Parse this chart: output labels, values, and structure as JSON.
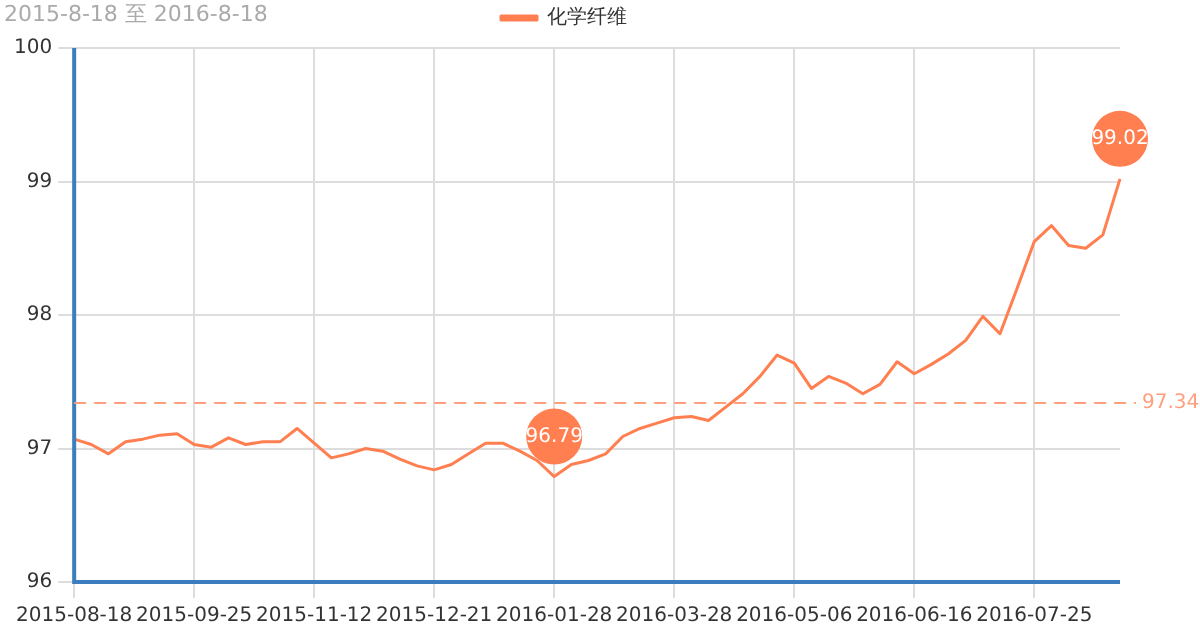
{
  "chart_data": {
    "type": "line",
    "title": "2015-8-18 至 2016-8-18",
    "categories": [
      "2015-08-18",
      null,
      null,
      null,
      null,
      null,
      null,
      "2015-09-25",
      null,
      null,
      null,
      null,
      null,
      null,
      "2015-11-12",
      null,
      null,
      null,
      null,
      null,
      null,
      "2015-12-21",
      null,
      null,
      null,
      null,
      null,
      null,
      "2016-01-28",
      null,
      null,
      null,
      null,
      null,
      null,
      "2016-03-28",
      null,
      null,
      null,
      null,
      null,
      null,
      "2016-05-06",
      null,
      null,
      null,
      null,
      null,
      null,
      "2016-06-16",
      null,
      null,
      null,
      null,
      null,
      null,
      "2016-07-25",
      null,
      null,
      null,
      null,
      null
    ],
    "series": [
      {
        "name": "化学纤维",
        "color": "#ff7f50",
        "values": [
          97.07,
          97.03,
          96.96,
          97.05,
          97.07,
          97.1,
          97.11,
          97.03,
          97.01,
          97.08,
          97.03,
          97.05,
          97.05,
          97.15,
          97.04,
          96.93,
          96.96,
          97.0,
          96.98,
          96.92,
          96.87,
          96.84,
          96.88,
          96.96,
          97.04,
          97.04,
          96.98,
          96.91,
          96.79,
          96.88,
          96.91,
          96.96,
          97.09,
          97.15,
          97.19,
          97.23,
          97.24,
          97.21,
          97.31,
          97.41,
          97.54,
          97.7,
          97.64,
          97.45,
          97.54,
          97.49,
          97.41,
          97.48,
          97.65,
          97.56,
          97.63,
          97.71,
          97.81,
          97.99,
          97.86,
          98.2,
          98.55,
          98.67,
          98.52,
          98.5,
          98.6,
          99.02
        ]
      }
    ],
    "ylim": [
      96,
      100
    ],
    "yticks": [
      96,
      97,
      98,
      99,
      100
    ],
    "grid": true,
    "legend": "top",
    "marker": "none",
    "ref_lines": [
      {
        "axis": "y",
        "value": 97.34,
        "label": "97.34",
        "color": "#ff9f7f",
        "line_style": "dashed"
      }
    ],
    "annotations": [
      {
        "text": "96.79",
        "x": "2016-01-28",
        "y": 96.79
      },
      {
        "text": "99.02",
        "y": 99.02
      }
    ]
  }
}
